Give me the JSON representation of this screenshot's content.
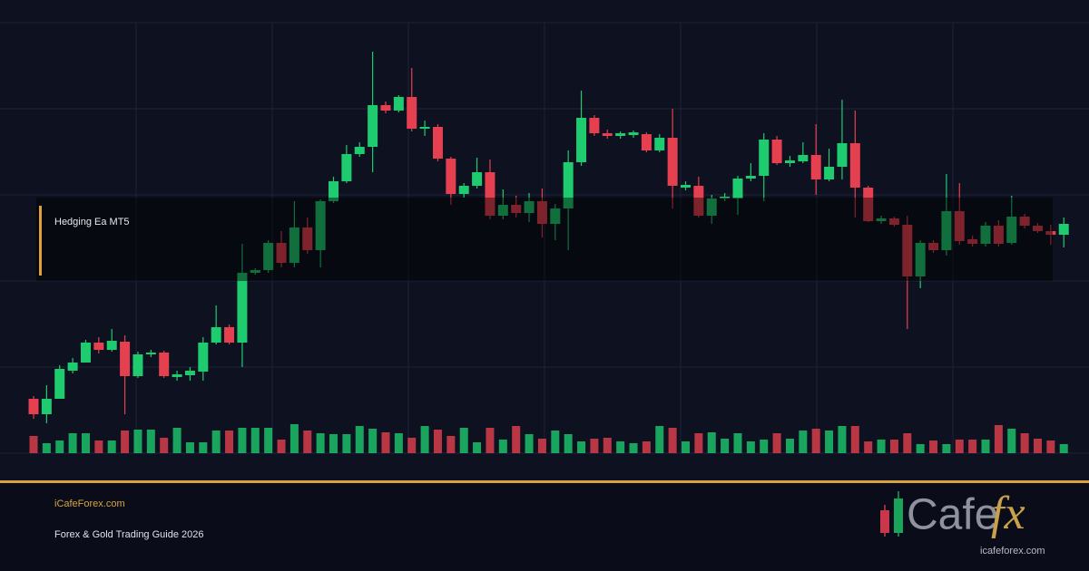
{
  "chart_data": {
    "type": "candlestick",
    "annotation": "Hedging Ea MT5",
    "up_color": "#1ecb6f",
    "down_color": "#e5404f",
    "open": [
      60,
      43,
      60,
      91,
      100,
      122,
      114,
      123,
      85,
      109,
      111,
      84,
      86,
      90,
      122,
      139,
      122,
      199,
      202,
      232,
      210,
      249,
      224,
      278,
      300,
      330,
      338,
      384,
      378,
      393,
      358,
      360,
      325,
      286,
      295,
      310,
      262,
      274,
      265,
      278,
      253,
      270,
      321,
      370,
      353,
      350,
      351,
      352,
      334,
      348,
      293,
      295,
      262,
      281,
      281,
      303,
      306,
      346,
      320,
      322,
      329,
      302,
      316,
      342,
      293,
      256,
      259,
      252,
      195,
      232,
      224,
      267,
      236,
      231,
      251,
      232,
      261,
      251,
      245,
      241
    ],
    "high": [
      63,
      75,
      97,
      105,
      125,
      128,
      137,
      130,
      112,
      114,
      113,
      91,
      95,
      128,
      163,
      142,
      231,
      204,
      235,
      245,
      278,
      260,
      280,
      305,
      340,
      343,
      443,
      388,
      395,
      425,
      367,
      363,
      327,
      298,
      326,
      324,
      291,
      284,
      287,
      292,
      275,
      334,
      400,
      373,
      357,
      355,
      356,
      354,
      352,
      380,
      300,
      305,
      285,
      287,
      306,
      320,
      353,
      350,
      328,
      343,
      363,
      336,
      390,
      378,
      295,
      262,
      261,
      262,
      235,
      235,
      308,
      298,
      240,
      255,
      257,
      284,
      264,
      254,
      252,
      260
    ],
    "low": [
      38,
      33,
      60,
      88,
      100,
      110,
      112,
      43,
      83,
      106,
      83,
      80,
      80,
      80,
      120,
      120,
      95,
      197,
      199,
      205,
      205,
      220,
      205,
      276,
      298,
      327,
      310,
      375,
      376,
      355,
      350,
      322,
      274,
      282,
      292,
      258,
      258,
      260,
      255,
      238,
      235,
      224,
      317,
      350,
      347,
      347,
      348,
      332,
      332,
      270,
      290,
      260,
      253,
      278,
      263,
      300,
      278,
      318,
      316,
      320,
      285,
      300,
      302,
      260,
      255,
      253,
      250,
      137,
      182,
      221,
      218,
      230,
      228,
      228,
      228,
      230,
      248,
      243,
      230,
      227
    ],
    "close": [
      43,
      60,
      93,
      100,
      122,
      114,
      124,
      85,
      109,
      111,
      85,
      87,
      91,
      122,
      139,
      122,
      199,
      202,
      232,
      210,
      249,
      224,
      278,
      300,
      330,
      338,
      384,
      378,
      393,
      358,
      360,
      325,
      286,
      295,
      310,
      262,
      274,
      265,
      278,
      253,
      270,
      321,
      370,
      353,
      350,
      353,
      354,
      334,
      348,
      295,
      296,
      262,
      281,
      283,
      303,
      306,
      346,
      320,
      323,
      329,
      302,
      316,
      342,
      293,
      256,
      259,
      252,
      195,
      232,
      224,
      267,
      234,
      231,
      251,
      231,
      261,
      251,
      245,
      241,
      253
    ],
    "volume": [
      19,
      11,
      14,
      22,
      22,
      14,
      14,
      25,
      26,
      26,
      17,
      28,
      12,
      12,
      25,
      25,
      28,
      28,
      28,
      15,
      32,
      25,
      22,
      21,
      21,
      30,
      27,
      23,
      22,
      17,
      30,
      26,
      19,
      28,
      12,
      28,
      15,
      30,
      21,
      16,
      25,
      21,
      13,
      16,
      17,
      13,
      11,
      13,
      30,
      28,
      13,
      22,
      23,
      16,
      22,
      13,
      15,
      22,
      16,
      25,
      27,
      25,
      30,
      30,
      13,
      15,
      15,
      22,
      10,
      14,
      10,
      15,
      15,
      15,
      31,
      27,
      22,
      16,
      14,
      10
    ]
  },
  "footer": {
    "site": "iCafeForex.com",
    "subtitle": "Forex & Gold Trading Guide 2026"
  },
  "logo": {
    "name": "Cafe",
    "accent": "fx",
    "url": "icafeforex.com"
  }
}
